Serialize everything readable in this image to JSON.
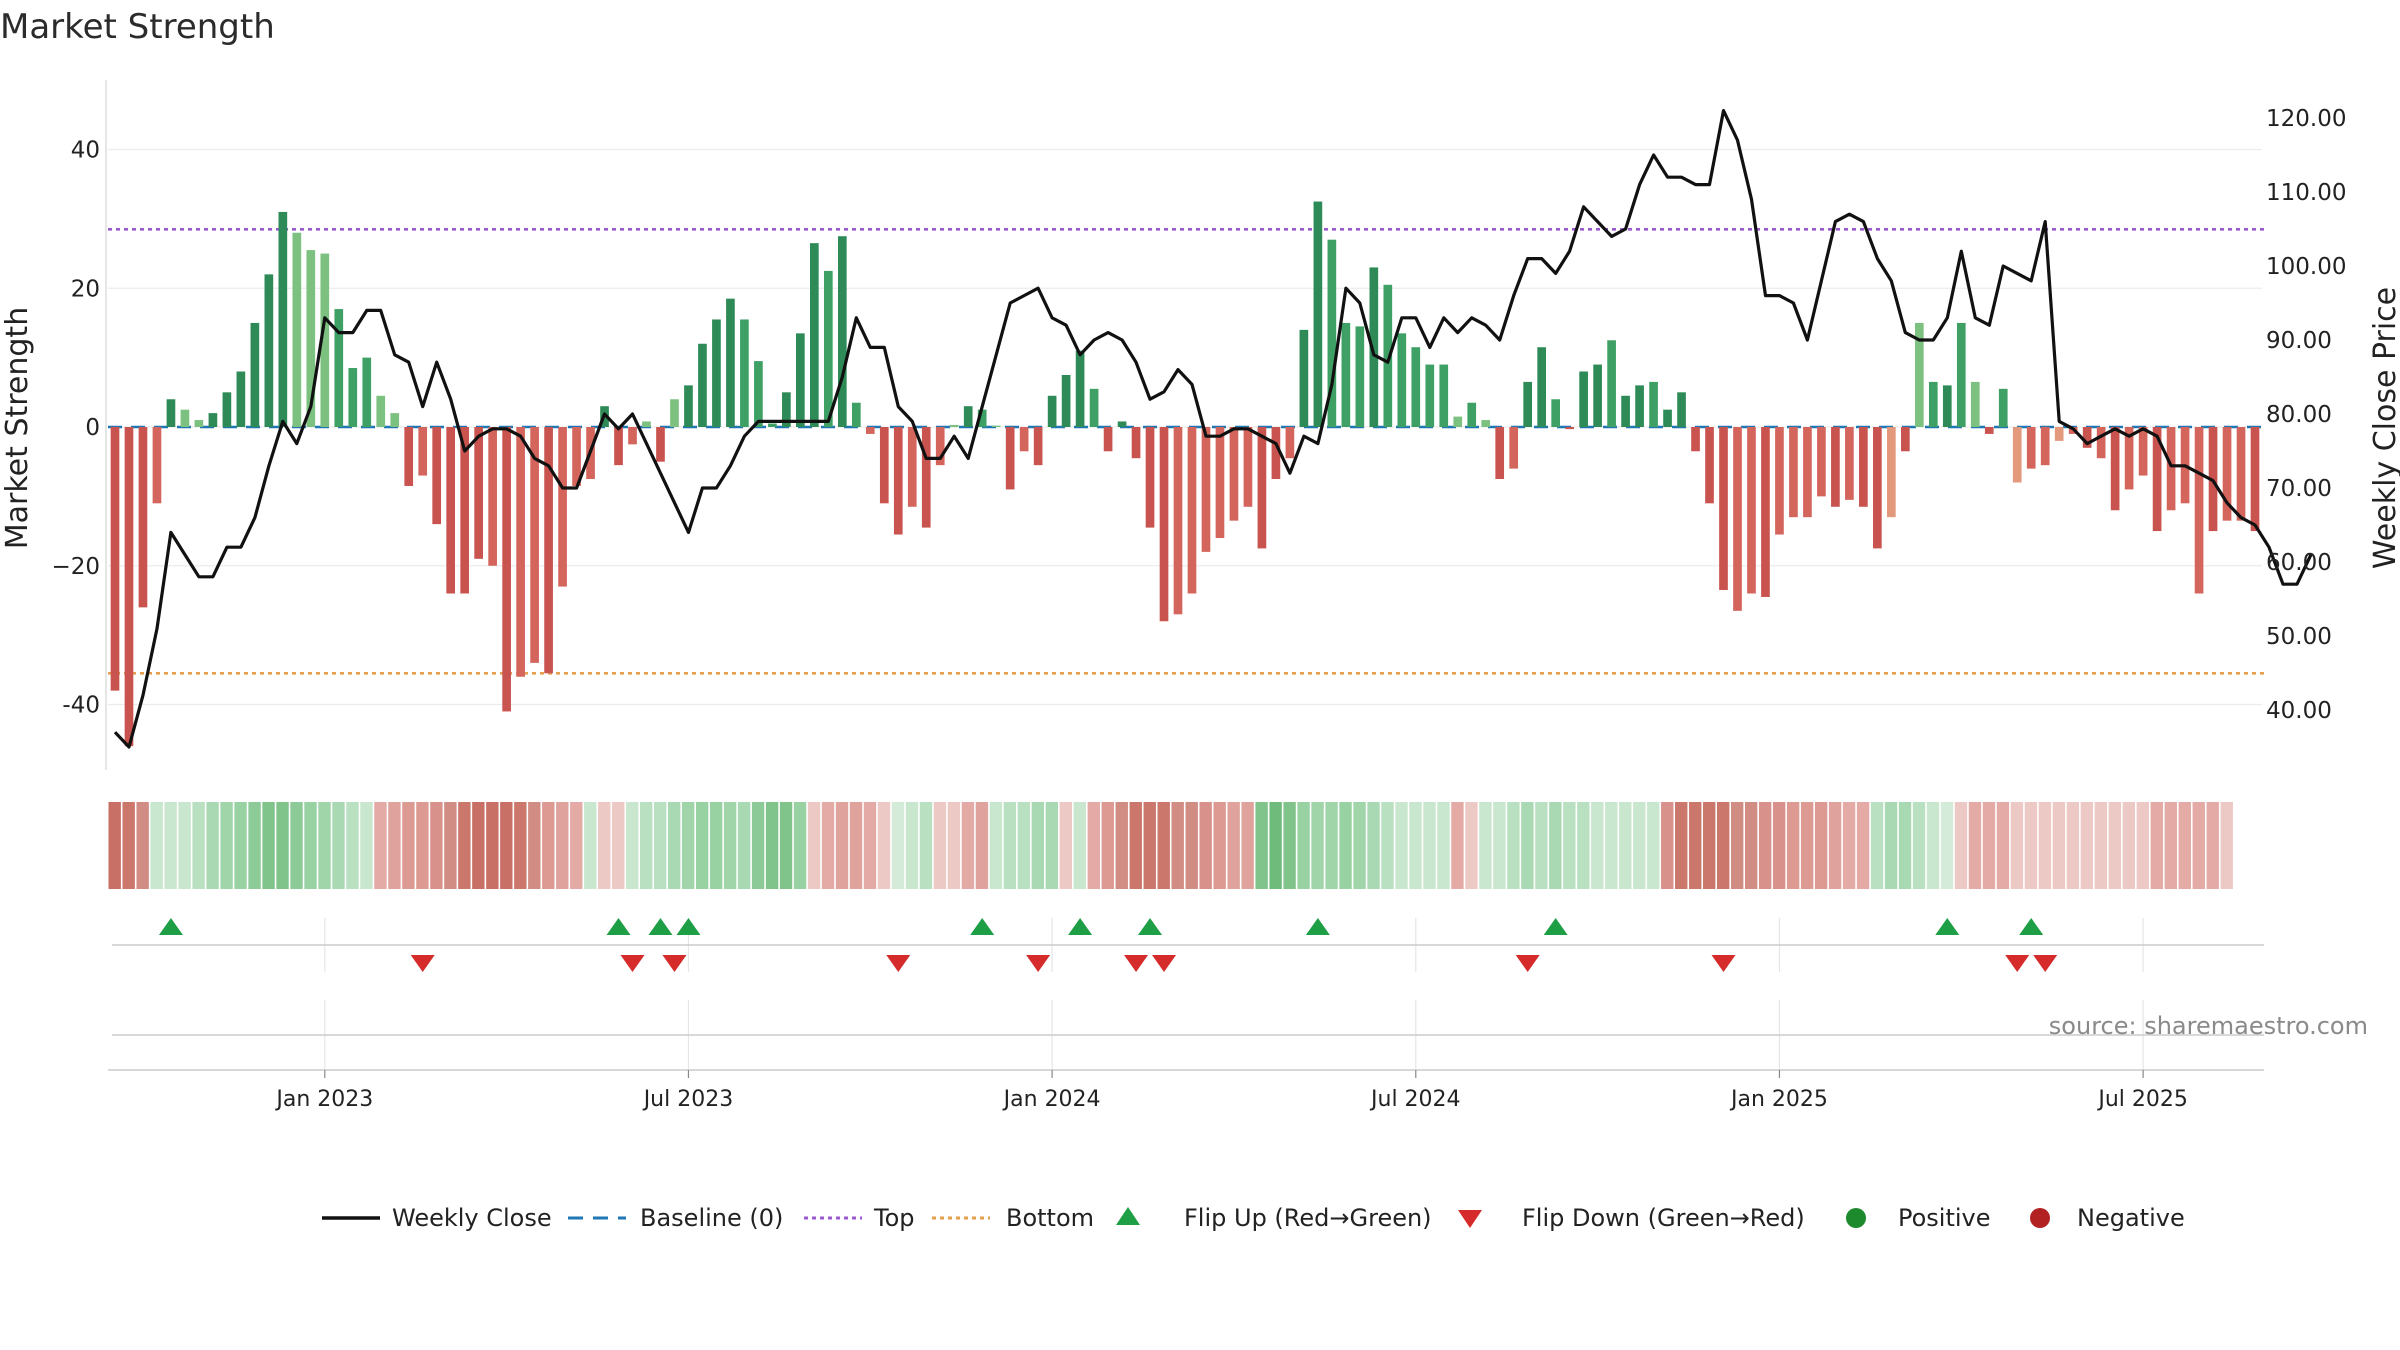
{
  "chart_data": {
    "type": "bar+line",
    "title": "Market Strength",
    "ylabel_left": "Market Strength",
    "ylabel_right": "Weekly Close Price",
    "ylim_left": [
      -50,
      50
    ],
    "ylim_right": [
      30,
      125
    ],
    "left_ticks": [
      {
        "v": 40,
        "t": "40"
      },
      {
        "v": 20,
        "t": "20"
      },
      {
        "v": 0,
        "t": "0"
      },
      {
        "v": -20,
        "t": "−20"
      },
      {
        "v": -40,
        "t": "-40"
      }
    ],
    "right_ticks": [
      {
        "v": 120,
        "t": "120.00"
      },
      {
        "v": 110,
        "t": "110.00"
      },
      {
        "v": 100,
        "t": "100.00"
      },
      {
        "v": 90,
        "t": "90.00"
      },
      {
        "v": 80,
        "t": "80.00"
      },
      {
        "v": 70,
        "t": "70.00"
      },
      {
        "v": 60,
        "t": "60.00"
      },
      {
        "v": 50,
        "t": "50.00"
      },
      {
        "v": 40,
        "t": "40.00"
      }
    ],
    "x_ticks": [
      {
        "week": 15,
        "t": "Jan 2023"
      },
      {
        "week": 41,
        "t": "Jul 2023"
      },
      {
        "week": 67,
        "t": "Jan 2024"
      },
      {
        "week": 93,
        "t": "Jul 2024"
      },
      {
        "week": 119,
        "t": "Jan 2025"
      },
      {
        "week": 145,
        "t": "Jul 2025"
      }
    ],
    "top_threshold": 28.5,
    "bottom_threshold": -35.5,
    "strength": [
      -38,
      -46,
      -26,
      -11,
      4,
      2.5,
      1,
      2,
      5,
      8,
      15,
      22,
      31,
      28,
      25.5,
      25,
      17,
      8.5,
      10,
      4.5,
      2,
      -8.5,
      -7,
      -14,
      -24,
      -24,
      -19,
      -20,
      -41,
      -36,
      -34,
      -35.5,
      -23,
      -8.5,
      -7.5,
      3,
      -5.5,
      -2.5,
      0.8,
      -5,
      4,
      6,
      12,
      15.5,
      18.5,
      15.5,
      9.5,
      0.5,
      5,
      13.5,
      26.5,
      22.5,
      27.5,
      3.5,
      -1,
      -11,
      -15.5,
      -11.5,
      -14.5,
      -5.5,
      0.3,
      3,
      2.5,
      0.2,
      -9,
      -3.5,
      -5.5,
      4.5,
      7.5,
      11,
      5.5,
      -3.5,
      0.8,
      -4.5,
      -14.5,
      -28,
      -27,
      -24,
      -18,
      -16,
      -13.5,
      -11.5,
      -17.5,
      -7.5,
      -4.5,
      14,
      32.5,
      27,
      15,
      14.5,
      23,
      20.5,
      13.5,
      11.5,
      9,
      9,
      1.5,
      3.5,
      1,
      -7.5,
      -6,
      6.5,
      11.5,
      4,
      -0.3,
      8,
      9,
      12.5,
      4.5,
      6,
      6.5,
      2.5,
      5,
      -3.5,
      -11,
      -23.5,
      -26.5,
      -24,
      -24.5,
      -15.5,
      -13,
      -13,
      -10,
      -11.5,
      -10.5,
      -11.5,
      -17.5,
      -13,
      -3.5,
      15,
      6.5,
      6,
      15,
      6.5,
      -1,
      5.5,
      -8,
      -6,
      -5.5,
      -2,
      -1,
      -3,
      -4.5,
      -12,
      -9,
      -7,
      -15,
      -12,
      -11,
      -24,
      -15,
      -13.5,
      -13.5,
      -15
    ],
    "bar_shades": [
      1,
      1,
      1,
      2,
      1,
      3,
      3,
      1,
      1,
      1,
      1,
      1,
      1,
      3,
      3,
      3,
      2,
      2,
      2,
      3,
      3,
      1,
      2,
      1,
      1,
      1,
      1,
      2,
      1,
      2,
      2,
      1,
      2,
      2,
      2,
      1,
      1,
      2,
      3,
      1,
      3,
      1,
      1,
      1,
      1,
      2,
      2,
      2,
      1,
      1,
      1,
      2,
      1,
      2,
      2,
      1,
      1,
      2,
      1,
      2,
      3,
      1,
      2,
      3,
      1,
      2,
      1,
      1,
      1,
      1,
      2,
      1,
      1,
      1,
      1,
      1,
      2,
      2,
      2,
      2,
      2,
      2,
      1,
      1,
      2,
      1,
      1,
      2,
      2,
      2,
      1,
      2,
      2,
      2,
      2,
      2,
      3,
      2,
      3,
      1,
      2,
      1,
      1,
      2,
      1,
      1,
      1,
      2,
      1,
      1,
      2,
      1,
      1,
      1,
      1,
      1,
      2,
      2,
      1,
      2,
      2,
      2,
      2,
      1,
      2,
      1,
      1,
      3,
      1,
      3,
      2,
      1,
      2,
      3,
      1,
      2,
      3,
      2,
      2,
      3,
      2,
      1,
      2,
      1,
      2,
      2,
      1,
      2,
      2,
      2,
      1,
      2,
      2,
      1
    ],
    "close": [
      37,
      35,
      42,
      51,
      64,
      61,
      58,
      58,
      62,
      62,
      66,
      73,
      79,
      76,
      81,
      93,
      91,
      91,
      94,
      94,
      88,
      87,
      81,
      87,
      82,
      75,
      77,
      78,
      78,
      77,
      74,
      73,
      70,
      70,
      75,
      80,
      78,
      80,
      76,
      72,
      68,
      64,
      70,
      70,
      73,
      77,
      79,
      79,
      79,
      79,
      79,
      79,
      85,
      93,
      89,
      89,
      81,
      79,
      74,
      74,
      77,
      74,
      81,
      88,
      95,
      96,
      97,
      93,
      92,
      88,
      90,
      91,
      90,
      87,
      82,
      83,
      86,
      84,
      77,
      77,
      78,
      78,
      77,
      76,
      72,
      77,
      76,
      84,
      97,
      95,
      88,
      87,
      93,
      93,
      89,
      93,
      91,
      93,
      92,
      90,
      96,
      101,
      101,
      99,
      102,
      108,
      106,
      104,
      105,
      111,
      115,
      112,
      112,
      111,
      111,
      121,
      117,
      109,
      96,
      96,
      95,
      90,
      98,
      106,
      107,
      106,
      101,
      98,
      91,
      90,
      90,
      93,
      102,
      93,
      92,
      100,
      99,
      98,
      106,
      79,
      78,
      76,
      77,
      78,
      77,
      78,
      77,
      73,
      73,
      72,
      71,
      68,
      66,
      65,
      62,
      57,
      57,
      61
    ],
    "regime_colors": [
      "#c97066",
      "#cb776c",
      "#d18c84",
      "#c9e6cf",
      "#c9e6cf",
      "#c9e6cf",
      "#b9e0c1",
      "#a9d9b2",
      "#a0d5a9",
      "#98d2a2",
      "#8ccb97",
      "#80c48c",
      "#80c48c",
      "#8ccb97",
      "#98d2a2",
      "#a0d5a9",
      "#a9d9b2",
      "#b9e0c1",
      "#c9e6cf",
      "#e4aba6",
      "#e0a29c",
      "#dc9a93",
      "#dc9a93",
      "#d9928b",
      "#d18c84",
      "#cb776c",
      "#c97066",
      "#c97066",
      "#c97066",
      "#cb776c",
      "#d18c84",
      "#dc9a93",
      "#e0a29c",
      "#e4aba6",
      "#c9e6cf",
      "#edc9c5",
      "#edc9c5",
      "#c9e6cf",
      "#b9e0c1",
      "#b9e0c1",
      "#a9d9b2",
      "#a0d5a9",
      "#98d2a2",
      "#98d2a2",
      "#a0d5a9",
      "#a9d9b2",
      "#8ccb97",
      "#80c48c",
      "#80c48c",
      "#98d2a2",
      "#edc9c5",
      "#e4aba6",
      "#e0a29c",
      "#e0a29c",
      "#e4aba6",
      "#edc9c5",
      "#d3ebd8",
      "#c9e6cf",
      "#b9e0c1",
      "#edc9c5",
      "#edc9c5",
      "#e4aba6",
      "#e0a29c",
      "#c9e6cf",
      "#b9e0c1",
      "#b9e0c1",
      "#a9d9b2",
      "#a9d9b2",
      "#edc9c5",
      "#c9e6cf",
      "#e4aba6",
      "#dc9a93",
      "#d18c84",
      "#cb776c",
      "#cb776c",
      "#cb776c",
      "#d18c84",
      "#d18c84",
      "#d9928b",
      "#dc9a93",
      "#e0a29c",
      "#e0a29c",
      "#80c48c",
      "#6fbb7c",
      "#80c48c",
      "#98d2a2",
      "#a0d5a9",
      "#a0d5a9",
      "#98d2a2",
      "#a0d5a9",
      "#a9d9b2",
      "#b9e0c1",
      "#c9e6cf",
      "#c9e6cf",
      "#c9e6cf",
      "#c9e6cf",
      "#e4aba6",
      "#edc9c5",
      "#c9e6cf",
      "#c9e6cf",
      "#b9e0c1",
      "#a9d9b2",
      "#b9e0c1",
      "#a9d9b2",
      "#b9e0c1",
      "#b9e0c1",
      "#c9e6cf",
      "#c9e6cf",
      "#c9e6cf",
      "#c9e6cf",
      "#c9e6cf",
      "#d9928b",
      "#cb776c",
      "#cb776c",
      "#cb776c",
      "#cb776c",
      "#d18c84",
      "#d18c84",
      "#d9928b",
      "#d9928b",
      "#dc9a93",
      "#dc9a93",
      "#dc9a93",
      "#e0a29c",
      "#e4aba6",
      "#e4aba6",
      "#b9e0c1",
      "#a9d9b2",
      "#a9d9b2",
      "#b9e0c1",
      "#c9e6cf",
      "#d3ebd8",
      "#edc9c5",
      "#e4aba6",
      "#e4aba6",
      "#e4aba6",
      "#edc9c5",
      "#edc9c5",
      "#edc9c5",
      "#edc9c5",
      "#edc9c5",
      "#edc9c5",
      "#edc9c5",
      "#edc9c5",
      "#edc9c5",
      "#edc9c5",
      "#e4aba6",
      "#e4aba6",
      "#e4aba6",
      "#e4aba6",
      "#e4aba6",
      "#edc9c5"
    ],
    "flip_up_weeks": [
      4,
      36,
      39,
      41,
      62,
      69,
      74,
      86,
      103,
      131,
      137
    ],
    "flip_down_weeks": [
      22,
      37,
      40,
      56,
      66,
      73,
      75,
      101,
      115,
      136,
      138
    ],
    "legend": [
      {
        "t": "Weekly Close",
        "kind": "line"
      },
      {
        "t": "Baseline (0)",
        "kind": "baseline"
      },
      {
        "t": "Top",
        "kind": "top"
      },
      {
        "t": "Bottom",
        "kind": "bottom"
      },
      {
        "t": "Flip Up (Red→Green)",
        "kind": "up"
      },
      {
        "t": "Flip Down (Green→Red)",
        "kind": "down"
      },
      {
        "t": "Positive",
        "kind": "pos"
      },
      {
        "t": "Negative",
        "kind": "neg"
      }
    ],
    "source": "source: sharemaestro.com"
  },
  "colors": {
    "green_shades": [
      "#2e8b57",
      "#3fa066",
      "#7cc17f"
    ],
    "red_shades": [
      "#c9534f",
      "#d4655d",
      "#e39a7c"
    ],
    "close_line": "#111111",
    "baseline": "#1f77b4",
    "top": "#9b59d0",
    "bottom": "#e3a04f",
    "flip_up": "#1e9e45",
    "flip_down": "#d62b2b",
    "positive_dot": "#1e8a2e",
    "negative_dot": "#b22222"
  }
}
